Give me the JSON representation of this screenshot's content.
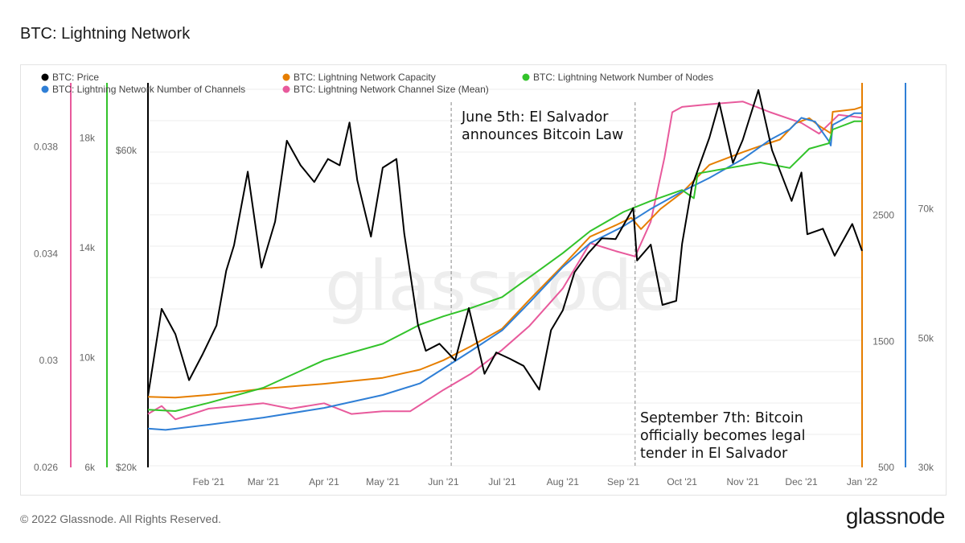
{
  "page": {
    "title": "BTC: Lightning Network",
    "footer_copyright": "© 2022 Glassnode. All Rights Reserved.",
    "footer_logo": "glassnode",
    "watermark": "glassnode"
  },
  "chart_data": {
    "type": "line",
    "title": "BTC: Lightning Network",
    "x_range": [
      "2021-01-01",
      "2022-01-01"
    ],
    "x_ticks": [
      "Feb '21",
      "Mar '21",
      "Apr '21",
      "May '21",
      "Jun '21",
      "Jul '21",
      "Aug '21",
      "Sep '21",
      "Oct '21",
      "Nov '21",
      "Dec '21",
      "Jan '22"
    ],
    "grid": true,
    "legend_position": "top-left",
    "axes": {
      "channel_size": {
        "side": "left",
        "ticks": [
          {
            "v": 0.026,
            "label": "0.026"
          },
          {
            "v": 0.03,
            "label": "0.03"
          },
          {
            "v": 0.034,
            "label": "0.034"
          },
          {
            "v": 0.038,
            "label": "0.038"
          }
        ],
        "range": [
          0.026,
          0.0404
        ],
        "color": "#e85a9c"
      },
      "nodes": {
        "side": "left",
        "ticks": [
          {
            "v": 6000,
            "label": "6k"
          },
          {
            "v": 10000,
            "label": "10k"
          },
          {
            "v": 14000,
            "label": "14k"
          },
          {
            "v": 18000,
            "label": "18k"
          }
        ],
        "range": [
          6000,
          20000
        ],
        "color": "#33c32b"
      },
      "price": {
        "side": "left",
        "ticks": [
          {
            "v": 20000,
            "label": "$20k"
          },
          {
            "v": 60000,
            "label": "$60k"
          }
        ],
        "range": [
          20000,
          68500
        ],
        "color": "#000000"
      },
      "capacity": {
        "side": "right",
        "ticks": [
          {
            "v": 500,
            "label": "500"
          },
          {
            "v": 1500,
            "label": "1500"
          },
          {
            "v": 2500,
            "label": "2500"
          }
        ],
        "range": [
          500,
          3550
        ],
        "color": "#e67e00"
      },
      "channels": {
        "side": "right",
        "ticks": [
          {
            "v": 30000,
            "label": "30k"
          },
          {
            "v": 50000,
            "label": "50k"
          },
          {
            "v": 70000,
            "label": "70k"
          }
        ],
        "range": [
          30000,
          89500
        ],
        "color": "#2f7fd6"
      }
    },
    "series": [
      {
        "name": "BTC: Price",
        "axis": "price",
        "color": "#000000",
        "points": [
          [
            "2021-01-01",
            29000
          ],
          [
            "2021-01-08",
            40000
          ],
          [
            "2021-01-15",
            36800
          ],
          [
            "2021-01-22",
            31000
          ],
          [
            "2021-01-29",
            34300
          ],
          [
            "2021-02-05",
            37900
          ],
          [
            "2021-02-10",
            44800
          ],
          [
            "2021-02-14",
            48000
          ],
          [
            "2021-02-21",
            57300
          ],
          [
            "2021-02-28",
            45200
          ],
          [
            "2021-03-07",
            51000
          ],
          [
            "2021-03-13",
            61200
          ],
          [
            "2021-03-20",
            58100
          ],
          [
            "2021-03-27",
            56000
          ],
          [
            "2021-04-03",
            58900
          ],
          [
            "2021-04-09",
            58100
          ],
          [
            "2021-04-14",
            63500
          ],
          [
            "2021-04-18",
            56200
          ],
          [
            "2021-04-25",
            49100
          ],
          [
            "2021-05-01",
            57800
          ],
          [
            "2021-05-08",
            58900
          ],
          [
            "2021-05-12",
            49500
          ],
          [
            "2021-05-19",
            38000
          ],
          [
            "2021-05-23",
            34700
          ],
          [
            "2021-05-30",
            35600
          ],
          [
            "2021-06-07",
            33500
          ],
          [
            "2021-06-14",
            40100
          ],
          [
            "2021-06-22",
            31800
          ],
          [
            "2021-06-28",
            34500
          ],
          [
            "2021-07-05",
            33700
          ],
          [
            "2021-07-12",
            32800
          ],
          [
            "2021-07-20",
            29800
          ],
          [
            "2021-07-26",
            37300
          ],
          [
            "2021-08-01",
            39800
          ],
          [
            "2021-08-07",
            44600
          ],
          [
            "2021-08-14",
            47000
          ],
          [
            "2021-08-21",
            48900
          ],
          [
            "2021-08-28",
            48800
          ],
          [
            "2021-09-06",
            52700
          ],
          [
            "2021-09-08",
            46100
          ],
          [
            "2021-09-15",
            48100
          ],
          [
            "2021-09-21",
            40500
          ],
          [
            "2021-09-28",
            41000
          ],
          [
            "2021-10-01",
            48200
          ],
          [
            "2021-10-06",
            55400
          ],
          [
            "2021-10-15",
            61600
          ],
          [
            "2021-10-20",
            66000
          ],
          [
            "2021-10-27",
            58400
          ],
          [
            "2021-11-01",
            61300
          ],
          [
            "2021-11-09",
            67600
          ],
          [
            "2021-11-16",
            60000
          ],
          [
            "2021-11-26",
            53600
          ],
          [
            "2021-12-01",
            57200
          ],
          [
            "2021-12-04",
            49400
          ],
          [
            "2021-12-12",
            50100
          ],
          [
            "2021-12-18",
            46700
          ],
          [
            "2021-12-27",
            50700
          ],
          [
            "2022-01-01",
            47300
          ]
        ]
      },
      {
        "name": "BTC: Lightning Network Capacity",
        "axis": "capacity",
        "color": "#e67e00",
        "points": [
          [
            "2021-01-01",
            1060
          ],
          [
            "2021-01-15",
            1053
          ],
          [
            "2021-02-01",
            1075
          ],
          [
            "2021-03-01",
            1124
          ],
          [
            "2021-04-01",
            1163
          ],
          [
            "2021-05-01",
            1210
          ],
          [
            "2021-05-20",
            1275
          ],
          [
            "2021-06-01",
            1350
          ],
          [
            "2021-06-15",
            1460
          ],
          [
            "2021-07-01",
            1600
          ],
          [
            "2021-07-15",
            1830
          ],
          [
            "2021-08-01",
            2100
          ],
          [
            "2021-08-15",
            2330
          ],
          [
            "2021-08-28",
            2420
          ],
          [
            "2021-09-05",
            2480
          ],
          [
            "2021-09-10",
            2390
          ],
          [
            "2021-09-20",
            2550
          ],
          [
            "2021-10-01",
            2680
          ],
          [
            "2021-10-15",
            2900
          ],
          [
            "2021-11-01",
            3000
          ],
          [
            "2021-11-10",
            3050
          ],
          [
            "2021-11-20",
            3100
          ],
          [
            "2021-11-28",
            3230
          ],
          [
            "2021-12-05",
            3270
          ],
          [
            "2021-12-10",
            3210
          ],
          [
            "2021-12-16",
            3150
          ],
          [
            "2021-12-17",
            3320
          ],
          [
            "2021-12-28",
            3340
          ],
          [
            "2022-01-01",
            3360
          ]
        ]
      },
      {
        "name": "BTC: Lightning Network Number of Nodes",
        "axis": "nodes",
        "color": "#33c32b",
        "points": [
          [
            "2021-01-01",
            8100
          ],
          [
            "2021-01-15",
            8050
          ],
          [
            "2021-02-01",
            8350
          ],
          [
            "2021-03-01",
            8900
          ],
          [
            "2021-04-01",
            9900
          ],
          [
            "2021-05-01",
            10500
          ],
          [
            "2021-05-20",
            11200
          ],
          [
            "2021-06-01",
            11500
          ],
          [
            "2021-06-15",
            11800
          ],
          [
            "2021-07-01",
            12200
          ],
          [
            "2021-08-01",
            13800
          ],
          [
            "2021-08-15",
            14600
          ],
          [
            "2021-09-01",
            15300
          ],
          [
            "2021-09-15",
            15700
          ],
          [
            "2021-10-01",
            16100
          ],
          [
            "2021-10-07",
            15800
          ],
          [
            "2021-10-09",
            16700
          ],
          [
            "2021-10-25",
            16900
          ],
          [
            "2021-11-10",
            17100
          ],
          [
            "2021-11-25",
            16900
          ],
          [
            "2021-12-05",
            17600
          ],
          [
            "2021-12-15",
            17800
          ],
          [
            "2021-12-17",
            18300
          ],
          [
            "2021-12-28",
            18600
          ],
          [
            "2022-01-01",
            18600
          ]
        ]
      },
      {
        "name": "BTC: Lightning Network Number of Channels",
        "axis": "channels",
        "color": "#2f7fd6",
        "points": [
          [
            "2021-01-01",
            36000
          ],
          [
            "2021-01-10",
            35800
          ],
          [
            "2021-02-01",
            36600
          ],
          [
            "2021-03-01",
            37700
          ],
          [
            "2021-04-01",
            39200
          ],
          [
            "2021-05-01",
            41200
          ],
          [
            "2021-05-20",
            43000
          ],
          [
            "2021-06-01",
            45300
          ],
          [
            "2021-06-15",
            48000
          ],
          [
            "2021-07-01",
            51200
          ],
          [
            "2021-07-15",
            55500
          ],
          [
            "2021-08-01",
            61000
          ],
          [
            "2021-08-15",
            64700
          ],
          [
            "2021-09-01",
            67300
          ],
          [
            "2021-09-15",
            70000
          ],
          [
            "2021-10-01",
            72700
          ],
          [
            "2021-10-15",
            74800
          ],
          [
            "2021-11-01",
            77700
          ],
          [
            "2021-11-15",
            80700
          ],
          [
            "2021-11-25",
            82300
          ],
          [
            "2021-12-01",
            84100
          ],
          [
            "2021-12-08",
            83500
          ],
          [
            "2021-12-15",
            80500
          ],
          [
            "2021-12-16",
            79800
          ],
          [
            "2021-12-17",
            83000
          ],
          [
            "2021-12-28",
            84800
          ],
          [
            "2022-01-01",
            84800
          ]
        ]
      },
      {
        "name": "BTC: Lightning Network Channel Size (Mean)",
        "axis": "channel_size",
        "color": "#e85a9c",
        "points": [
          [
            "2021-01-01",
            0.028
          ],
          [
            "2021-01-08",
            0.0283
          ],
          [
            "2021-01-15",
            0.0278
          ],
          [
            "2021-02-01",
            0.0282
          ],
          [
            "2021-03-01",
            0.0284
          ],
          [
            "2021-03-15",
            0.0282
          ],
          [
            "2021-04-01",
            0.0284
          ],
          [
            "2021-04-15",
            0.028
          ],
          [
            "2021-05-01",
            0.0281
          ],
          [
            "2021-05-15",
            0.0281
          ],
          [
            "2021-06-01",
            0.0289
          ],
          [
            "2021-06-15",
            0.0295
          ],
          [
            "2021-07-01",
            0.0304
          ],
          [
            "2021-07-15",
            0.0313
          ],
          [
            "2021-08-01",
            0.0327
          ],
          [
            "2021-08-15",
            0.0344
          ],
          [
            "2021-08-28",
            0.0341
          ],
          [
            "2021-09-07",
            0.0339
          ],
          [
            "2021-09-15",
            0.0352
          ],
          [
            "2021-09-22",
            0.0376
          ],
          [
            "2021-09-26",
            0.0393
          ],
          [
            "2021-10-01",
            0.0395
          ],
          [
            "2021-10-15",
            0.0396
          ],
          [
            "2021-11-01",
            0.0397
          ],
          [
            "2021-11-15",
            0.0393
          ],
          [
            "2021-12-01",
            0.0389
          ],
          [
            "2021-12-10",
            0.0385
          ],
          [
            "2021-12-20",
            0.0392
          ],
          [
            "2022-01-01",
            0.0391
          ]
        ]
      }
    ],
    "annotations": [
      {
        "date": "2021-06-05",
        "lines": [
          "June 5th: El Salvador",
          "announces Bitcoin Law"
        ]
      },
      {
        "date": "2021-09-07",
        "lines": [
          "September 7th: Bitcoin",
          "officially becomes legal",
          "tender in El Salvador"
        ]
      }
    ]
  }
}
